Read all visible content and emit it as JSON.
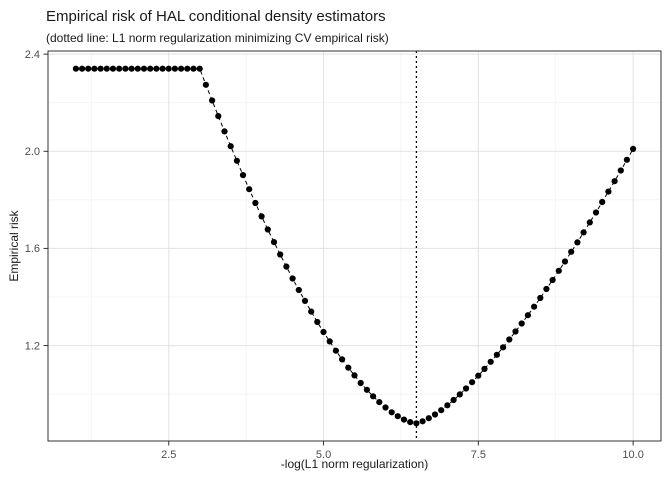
{
  "title": "Empirical risk of HAL conditional density estimators",
  "subtitle": "(dotted line: L1 norm regularization minimizing CV empirical risk)",
  "chart_data": {
    "type": "scatter",
    "title": "Empirical risk of HAL conditional density estimators",
    "subtitle": "(dotted line: L1 norm regularization minimizing CV empirical risk)",
    "xlabel": "-log(L1 norm regularization)",
    "ylabel": "Empirical risk",
    "x": [
      1.0,
      1.1,
      1.2,
      1.3,
      1.4,
      1.5,
      1.6,
      1.7,
      1.8,
      1.9,
      2.0,
      2.1,
      2.2,
      2.3,
      2.4,
      2.5,
      2.6,
      2.7,
      2.8,
      2.9,
      3.0,
      3.1,
      3.2,
      3.3,
      3.4,
      3.5,
      3.6,
      3.7,
      3.8,
      3.9,
      4.0,
      4.1,
      4.2,
      4.3,
      4.4,
      4.5,
      4.6,
      4.7,
      4.8,
      4.9,
      5.0,
      5.1,
      5.2,
      5.3,
      5.4,
      5.5,
      5.6,
      5.7,
      5.8,
      5.9,
      6.0,
      6.1,
      6.2,
      6.3,
      6.4,
      6.5,
      6.6,
      6.7,
      6.8,
      6.9,
      7.0,
      7.1,
      7.2,
      7.3,
      7.4,
      7.5,
      7.6,
      7.7,
      7.8,
      7.9,
      8.0,
      8.1,
      8.2,
      8.3,
      8.4,
      8.5,
      8.6,
      8.7,
      8.8,
      8.9,
      9.0,
      9.1,
      9.2,
      9.3,
      9.4,
      9.5,
      9.6,
      9.7,
      9.8,
      9.9,
      10.0
    ],
    "y": [
      2.34,
      2.34,
      2.34,
      2.34,
      2.34,
      2.34,
      2.34,
      2.34,
      2.34,
      2.34,
      2.34,
      2.34,
      2.34,
      2.34,
      2.34,
      2.34,
      2.34,
      2.34,
      2.34,
      2.34,
      2.34,
      2.274,
      2.209,
      2.145,
      2.082,
      2.021,
      1.961,
      1.902,
      1.844,
      1.787,
      1.732,
      1.678,
      1.626,
      1.575,
      1.525,
      1.476,
      1.429,
      1.384,
      1.34,
      1.297,
      1.256,
      1.217,
      1.179,
      1.143,
      1.109,
      1.077,
      1.046,
      1.018,
      0.991,
      0.967,
      0.945,
      0.925,
      0.909,
      0.895,
      0.885,
      0.88,
      0.888,
      0.901,
      0.916,
      0.934,
      0.954,
      0.976,
      0.999,
      1.023,
      1.049,
      1.076,
      1.104,
      1.133,
      1.162,
      1.193,
      1.225,
      1.258,
      1.291,
      1.325,
      1.36,
      1.396,
      1.433,
      1.47,
      1.508,
      1.546,
      1.586,
      1.625,
      1.666,
      1.707,
      1.748,
      1.791,
      1.834,
      1.877,
      1.921,
      1.965,
      2.01
    ],
    "point_style": {
      "color": "#000000",
      "radius": 3.1
    },
    "line_style": {
      "color": "#000000",
      "dash": "dashed"
    },
    "vline": {
      "x": 6.5,
      "dash": "dotted",
      "color": "#000000"
    },
    "xlim": [
      0.55,
      10.45
    ],
    "ylim": [
      0.807,
      2.413
    ],
    "x_ticks": [
      2.5,
      5.0,
      7.5,
      10.0
    ],
    "x_tick_labels": [
      "2.5",
      "5.0",
      "7.5",
      "10.0"
    ],
    "y_ticks": [
      1.2,
      1.6,
      2.0,
      2.4
    ],
    "y_tick_labels": [
      "1.2",
      "1.6",
      "2.0",
      "2.4"
    ],
    "x_minor_ticks": [
      1.25,
      3.75,
      6.25,
      8.75
    ],
    "y_minor_ticks": [
      1.0,
      1.4,
      1.8,
      2.2
    ],
    "grid": {
      "major_color": "#e2e2e2",
      "minor_color": "#f1f1f1",
      "on": true
    },
    "panel": {
      "background": "#ffffff",
      "border_color": "#333333"
    },
    "tick_label_color": "#4d4d4d",
    "legend": "none"
  }
}
